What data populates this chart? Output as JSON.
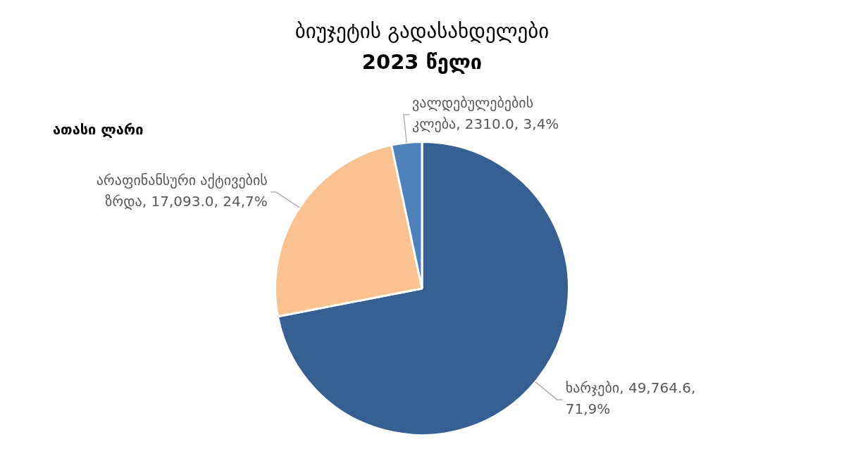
{
  "chart_data": {
    "type": "pie",
    "title": "ბიუჯეტის გადასახდელები\n2023 წელი",
    "annotations": [
      "ათასი ლარი"
    ],
    "categories": [
      "ხარჯები",
      "არაფინანსური აქტივების ზრდა",
      "ვალდებულებების კლება"
    ],
    "values": [
      49764.6,
      17093.0,
      2310.0
    ],
    "colors": [
      "#376092",
      "#f9c290",
      "#4f81bd"
    ],
    "value_labels": [
      "49,764.6, 71,9%",
      "17,093.0, 24,7%",
      "2310.0, 3,4%"
    ],
    "legend": false
  }
}
